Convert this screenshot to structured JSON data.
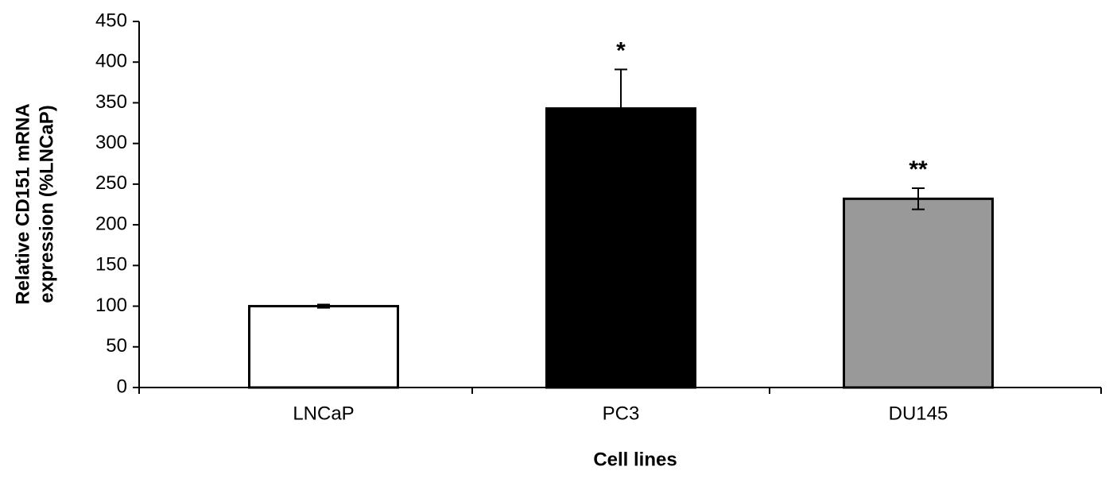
{
  "chart_data": {
    "type": "bar",
    "categories": [
      "LNCaP",
      "PC3",
      "DU145"
    ],
    "values": [
      100,
      343,
      232
    ],
    "errors": [
      2,
      48,
      13
    ],
    "colors": [
      "#ffffff",
      "#000000",
      "#999999"
    ],
    "annotations": [
      {
        "category": "PC3",
        "text": "*"
      },
      {
        "category": "DU145",
        "text": "**"
      }
    ],
    "x_label": "Cell lines",
    "y_label": [
      "Relative CD151 mRNA",
      "expression (%LNCaP)"
    ],
    "ylim": [
      0,
      450
    ],
    "yticks": [
      0,
      50,
      100,
      150,
      200,
      250,
      300,
      350,
      400,
      450
    ],
    "grid": false
  }
}
